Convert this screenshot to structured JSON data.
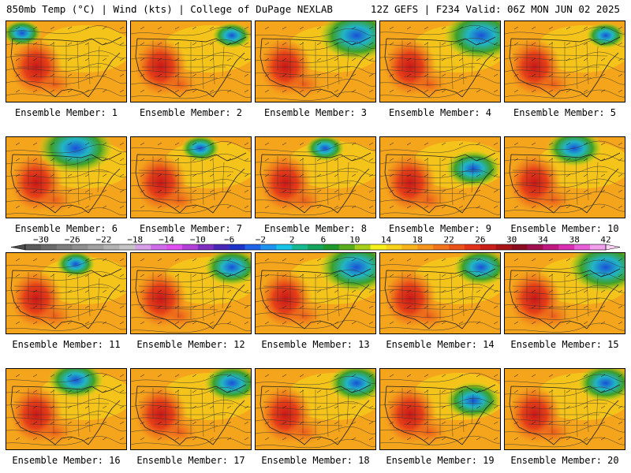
{
  "header": {
    "left": "850mb Temp (°C) | Wind (kts) | College of DuPage NEXLAB",
    "right": "12Z GEFS | F234 Valid: 06Z MON JUN 02 2025"
  },
  "panels": [
    {
      "label": "Ensemble Member: 1",
      "cold_pool": "nw-weak"
    },
    {
      "label": "Ensemble Member: 2",
      "cold_pool": "ne-weak"
    },
    {
      "label": "Ensemble Member: 3",
      "cold_pool": "ne-strong"
    },
    {
      "label": "Ensemble Member: 4",
      "cold_pool": "ne-strong"
    },
    {
      "label": "Ensemble Member: 5",
      "cold_pool": "ne-weak"
    },
    {
      "label": "Ensemble Member: 6",
      "cold_pool": "north-strong"
    },
    {
      "label": "Ensemble Member: 7",
      "cold_pool": "north-weak"
    },
    {
      "label": "Ensemble Member: 8",
      "cold_pool": "north-weak"
    },
    {
      "label": "Ensemble Member: 9",
      "cold_pool": "east-moderate"
    },
    {
      "label": "Ensemble Member: 10",
      "cold_pool": "north-moderate"
    },
    {
      "label": "Ensemble Member: 11",
      "cold_pool": "north-weak"
    },
    {
      "label": "Ensemble Member: 12",
      "cold_pool": "ne-moderate"
    },
    {
      "label": "Ensemble Member: 13",
      "cold_pool": "ne-strong"
    },
    {
      "label": "Ensemble Member: 14",
      "cold_pool": "ne-moderate"
    },
    {
      "label": "Ensemble Member: 15",
      "cold_pool": "ne-strong"
    },
    {
      "label": "Ensemble Member: 16",
      "cold_pool": "north-moderate"
    },
    {
      "label": "Ensemble Member: 17",
      "cold_pool": "ne-moderate"
    },
    {
      "label": "Ensemble Member: 18",
      "cold_pool": "ne-moderate"
    },
    {
      "label": "Ensemble Member: 19",
      "cold_pool": "east-moderate"
    },
    {
      "label": "Ensemble Member: 20",
      "cold_pool": "ne-moderate"
    }
  ],
  "colorbar": {
    "tick_labels": [
      "−30",
      "−26",
      "−22",
      "−18",
      "−14",
      "−10",
      "−6",
      "−2",
      "2",
      "6",
      "10",
      "14",
      "18",
      "22",
      "26",
      "30",
      "34",
      "38",
      "42"
    ],
    "bins": [
      {
        "from": -32,
        "color": "#5a5a5a"
      },
      {
        "from": -30,
        "color": "#6b6b6b"
      },
      {
        "from": -28,
        "color": "#7d7d7d"
      },
      {
        "from": -26,
        "color": "#8f8f8f"
      },
      {
        "from": -24,
        "color": "#a1a1a1"
      },
      {
        "from": -22,
        "color": "#b3b3b3"
      },
      {
        "from": -20,
        "color": "#c5c5c5"
      },
      {
        "from": -18,
        "color": "#d8a0e8"
      },
      {
        "from": -16,
        "color": "#cf6cea"
      },
      {
        "from": -14,
        "color": "#e04ff0"
      },
      {
        "from": -12,
        "color": "#b23fd8"
      },
      {
        "from": -10,
        "color": "#7f2fc0"
      },
      {
        "from": -8,
        "color": "#4b27b8"
      },
      {
        "from": -6,
        "color": "#1e33c8"
      },
      {
        "from": -4,
        "color": "#1f63e6"
      },
      {
        "from": -2,
        "color": "#1e93f0"
      },
      {
        "from": 0,
        "color": "#17c3e6"
      },
      {
        "from": 2,
        "color": "#16b890"
      },
      {
        "from": 4,
        "color": "#13a35a"
      },
      {
        "from": 6,
        "color": "#1f9a2a"
      },
      {
        "from": 8,
        "color": "#59ad1c"
      },
      {
        "from": 10,
        "color": "#a6cf1a"
      },
      {
        "from": 12,
        "color": "#f5f01a"
      },
      {
        "from": 14,
        "color": "#f8d21b"
      },
      {
        "from": 16,
        "color": "#f7b41c"
      },
      {
        "from": 18,
        "color": "#f4961c"
      },
      {
        "from": 20,
        "color": "#ef741b"
      },
      {
        "from": 22,
        "color": "#ea521a"
      },
      {
        "from": 24,
        "color": "#e23219"
      },
      {
        "from": 26,
        "color": "#cc1e18"
      },
      {
        "from": 28,
        "color": "#a61416"
      },
      {
        "from": 30,
        "color": "#8a0e20"
      },
      {
        "from": 32,
        "color": "#a01050"
      },
      {
        "from": 34,
        "color": "#c01880"
      },
      {
        "from": 36,
        "color": "#d830b0"
      },
      {
        "from": 38,
        "color": "#e860d8"
      },
      {
        "from": 40,
        "color": "#f2a0ee"
      }
    ]
  }
}
